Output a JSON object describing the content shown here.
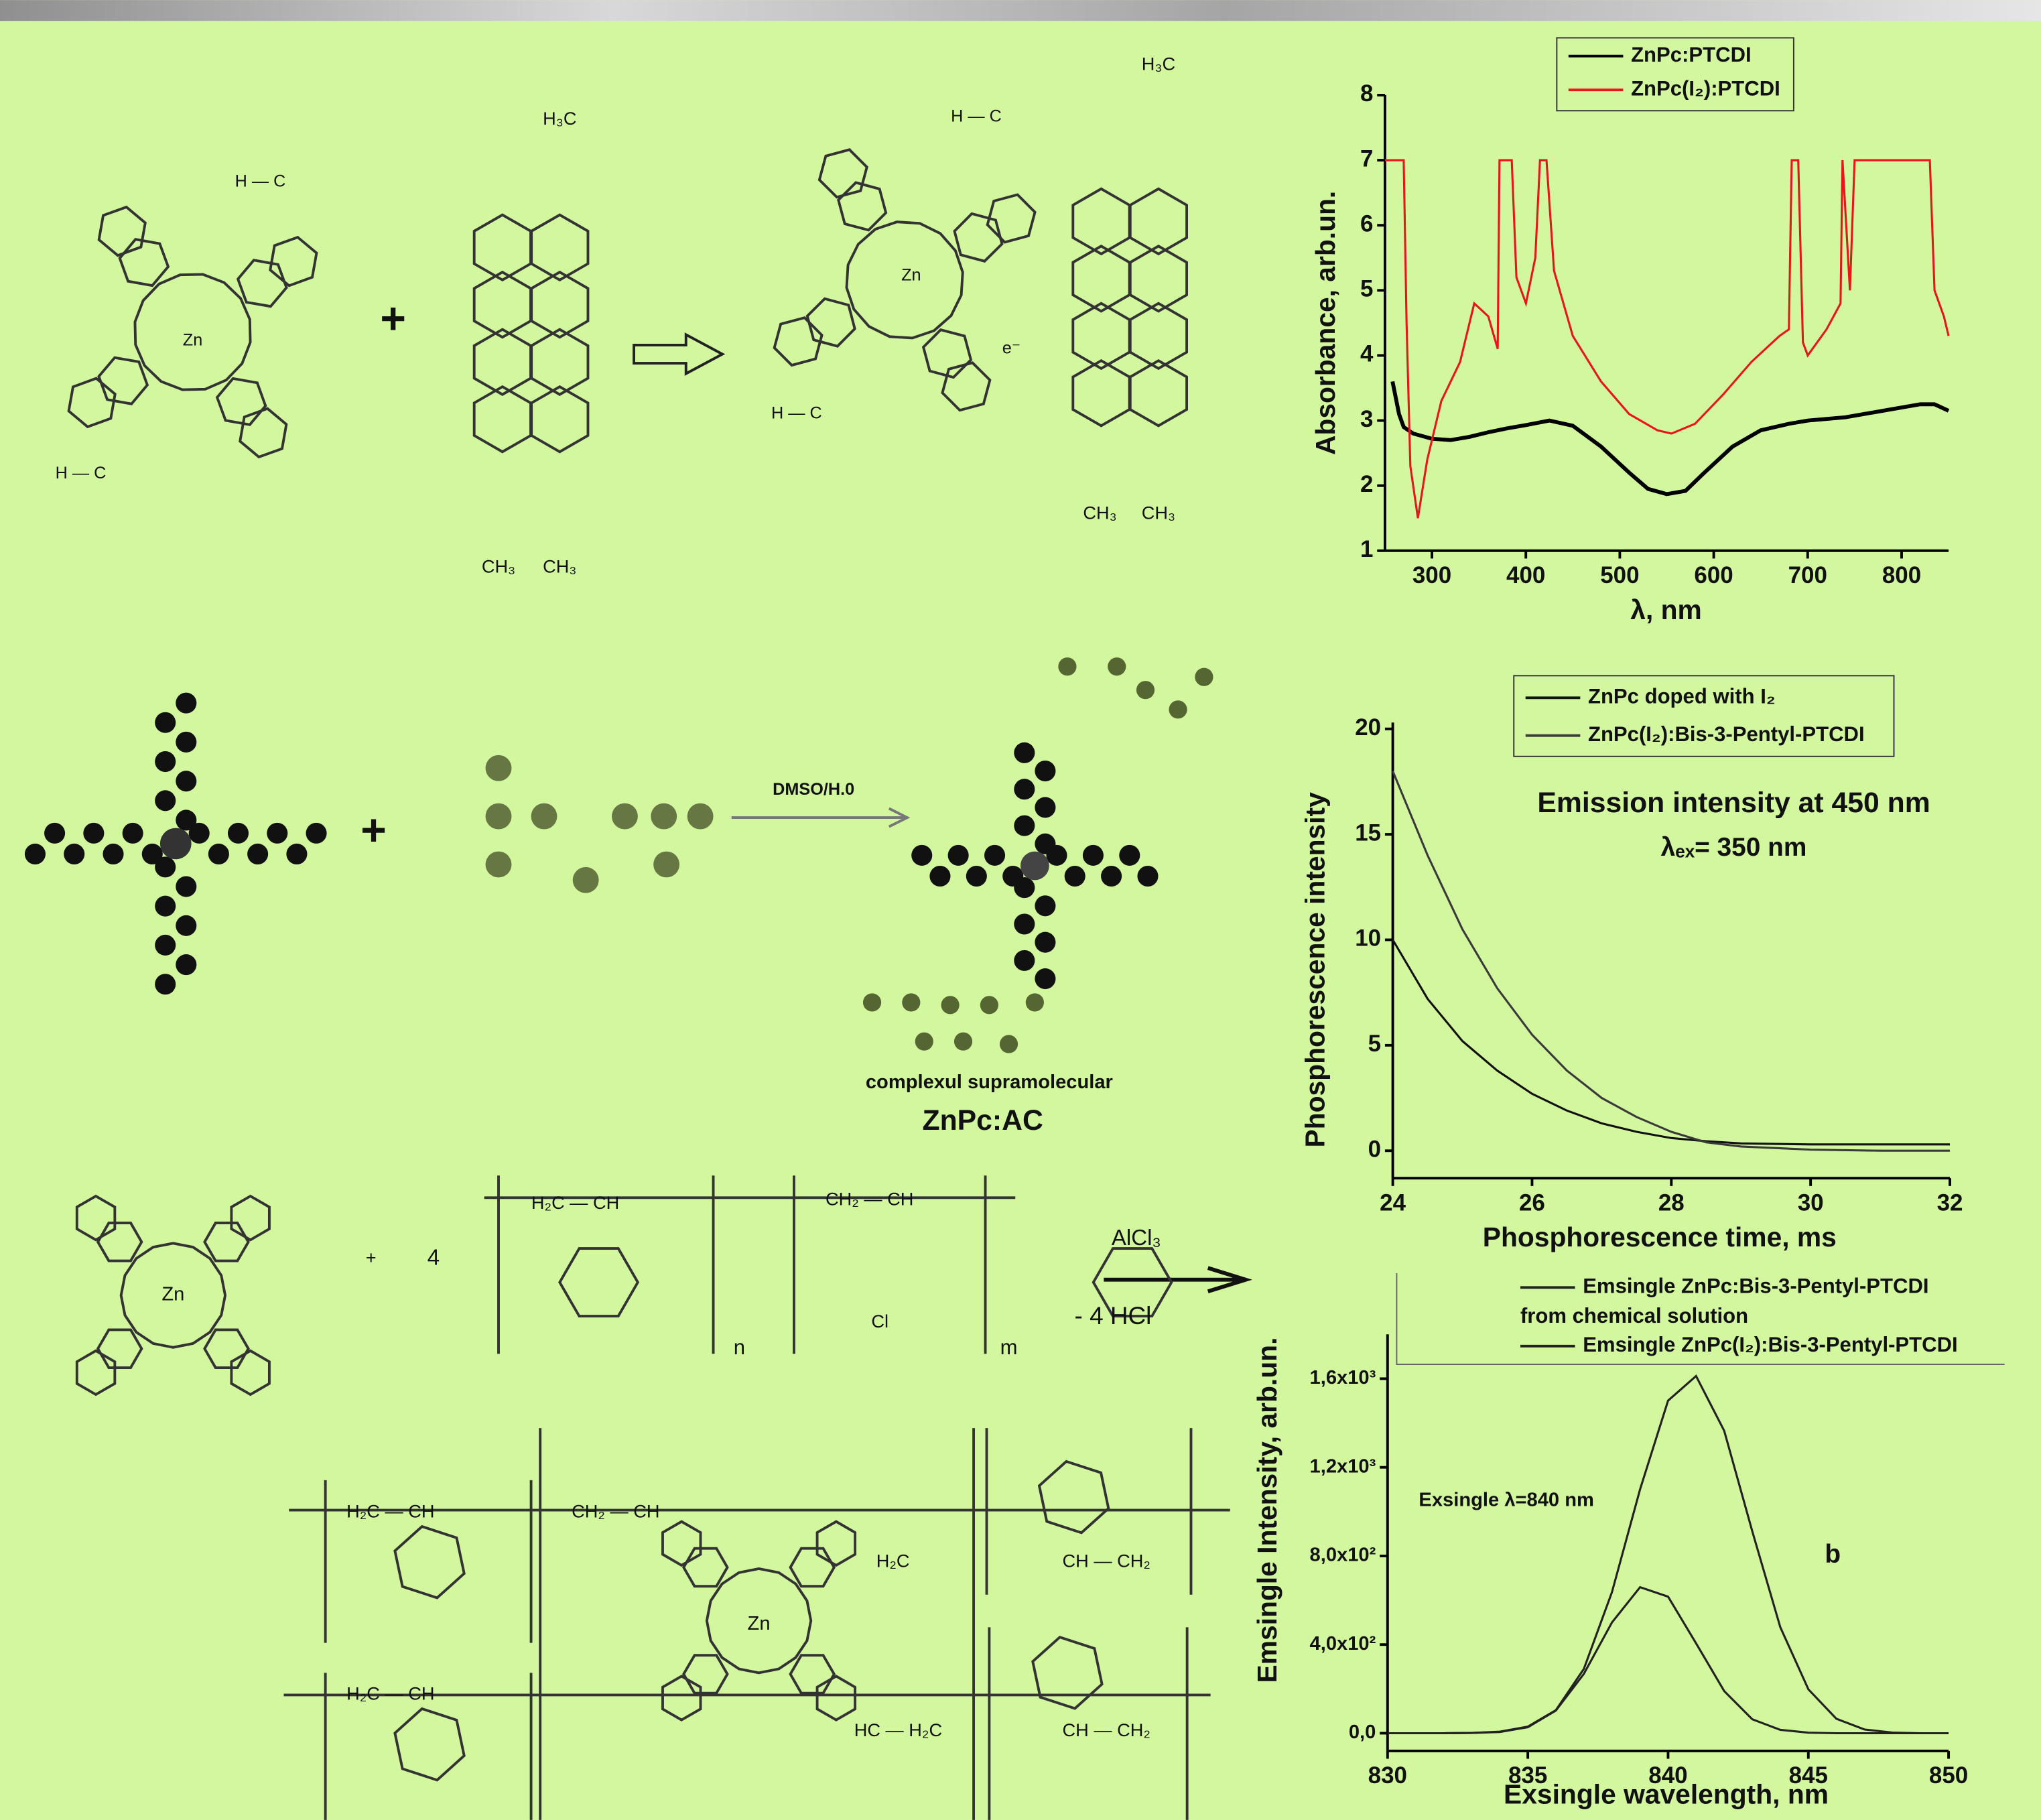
{
  "chart_data": [
    {
      "type": "line",
      "x_label": "λ, nm",
      "y_label": "Absorbance, arb.un.",
      "xlim": [
        250,
        850
      ],
      "ylim": [
        1,
        8
      ],
      "xticks": [
        300,
        400,
        500,
        600,
        700,
        800
      ],
      "yticks": [
        1,
        2,
        3,
        4,
        5,
        6,
        7,
        8
      ],
      "series": [
        {
          "name": "ZnPc:PTCDI",
          "color": "#000000",
          "x": [
            258,
            265,
            270,
            280,
            300,
            320,
            340,
            360,
            380,
            400,
            425,
            450,
            480,
            510,
            530,
            550,
            570,
            590,
            620,
            650,
            680,
            700,
            740,
            780,
            820,
            835,
            850
          ],
          "values": [
            3.6,
            3.1,
            2.9,
            2.8,
            2.72,
            2.7,
            2.75,
            2.82,
            2.88,
            2.93,
            3.0,
            2.92,
            2.6,
            2.2,
            1.95,
            1.87,
            1.92,
            2.2,
            2.6,
            2.85,
            2.95,
            3.0,
            3.05,
            3.15,
            3.25,
            3.25,
            3.15
          ]
        },
        {
          "name": "ZnPc(I₂):PTCDI",
          "color": "#e8161b",
          "x": [
            250,
            270,
            273,
            277,
            285,
            295,
            310,
            330,
            345,
            360,
            370,
            372,
            385,
            390,
            400,
            410,
            415,
            422,
            430,
            450,
            480,
            510,
            540,
            555,
            580,
            610,
            640,
            670,
            680,
            683,
            690,
            695,
            700,
            720,
            735,
            737,
            745,
            750,
            830,
            835,
            845,
            850
          ],
          "values": [
            7,
            7,
            4.5,
            2.3,
            1.5,
            2.4,
            3.3,
            3.9,
            4.8,
            4.6,
            4.1,
            7,
            7,
            5.2,
            4.8,
            5.5,
            7,
            7,
            5.3,
            4.3,
            3.6,
            3.1,
            2.85,
            2.8,
            2.95,
            3.4,
            3.9,
            4.3,
            4.4,
            7,
            7,
            4.2,
            4.0,
            4.4,
            4.8,
            7,
            5,
            7,
            7,
            5,
            4.6,
            4.3
          ]
        }
      ]
    },
    {
      "type": "line",
      "x_label": "Phosphorescence time, ms",
      "y_label": "Phosphorescence intensity",
      "xlim": [
        24,
        32
      ],
      "ylim": [
        -1.3,
        20.3
      ],
      "xticks": [
        24,
        26,
        28,
        30,
        32
      ],
      "yticks": [
        0,
        5,
        10,
        15,
        20
      ],
      "annotations": [
        "Emission intensity at  450 nm",
        "λₑₓ= 350 nm"
      ],
      "x": [
        24,
        24.5,
        25,
        25.5,
        26,
        26.5,
        27,
        27.5,
        28,
        28.5,
        29,
        30,
        31,
        32
      ],
      "series": [
        {
          "name": "ZnPc doped with I₂",
          "color": "#111111",
          "values": [
            10,
            7.2,
            5.2,
            3.8,
            2.7,
            1.9,
            1.3,
            0.9,
            0.6,
            0.45,
            0.35,
            0.3,
            0.3,
            0.3
          ]
        },
        {
          "name": "ZnPc(I₂):Bis-3-Pentyl-PTCDI",
          "color": "#3a3a3a",
          "values": [
            18,
            14,
            10.5,
            7.7,
            5.5,
            3.8,
            2.5,
            1.6,
            0.9,
            0.4,
            0.2,
            0.05,
            0,
            0
          ]
        }
      ]
    },
    {
      "type": "line",
      "x_label": "Exsingle wavelength, nm",
      "y_label": "Emsingle Intensity, arb.un.",
      "xlim": [
        830,
        850
      ],
      "ylim": [
        -80,
        1800
      ],
      "xticks": [
        830,
        835,
        840,
        845,
        850
      ],
      "yticks": [
        {
          "value": 0,
          "label": "0,0"
        },
        {
          "value": 400,
          "label": "4,0x10²"
        },
        {
          "value": 800,
          "label": "8,0x10²"
        },
        {
          "value": 1200,
          "label": "1,2x10³"
        },
        {
          "value": 1600,
          "label": "1,6x10³"
        }
      ],
      "annotations": [
        "Exsingle λ=840 nm",
        "b"
      ],
      "legend_note": "from chemical solution",
      "x": [
        830,
        831,
        832,
        833,
        834,
        835,
        836,
        837,
        838,
        839,
        840,
        841,
        842,
        843,
        844,
        845,
        846,
        847,
        848,
        849,
        850
      ],
      "series": [
        {
          "name": "Emsingle ZnPc:Bis-3-Pentyl-PTCDI",
          "color": "#222222",
          "values": [
            0,
            0,
            0,
            1,
            7,
            30,
            104,
            290,
            637,
            1101,
            1501,
            1612,
            1365,
            911,
            479,
            198,
            65,
            17,
            3,
            0,
            0
          ]
        },
        {
          "name": "Emsingle ZnPc(I₂):Bis-3-Pentyl-PTCDI",
          "color": "#222222",
          "values": [
            0,
            0,
            0,
            1,
            5,
            27,
            102,
            268,
            500,
            659,
            616,
            406,
            190,
            63,
            15,
            2,
            0,
            0,
            0,
            0,
            0
          ]
        }
      ]
    }
  ],
  "diagram": {
    "texts": [
      "+",
      "+",
      "DMSO/H.0",
      "complexul supramolecular",
      "ZnPc:AC",
      "+",
      "4",
      "n",
      "m",
      "AlCl₃",
      "- 4 HCl",
      "Zn",
      "Zn",
      "Zn",
      "Zn",
      "H₃C",
      "CH₃",
      "CH₃",
      "H₃C",
      "CH₃",
      "CH₃",
      "H — C",
      "H — C",
      "H — C",
      "H — C",
      "e⁻",
      "H₂C — CH",
      "CH₂ — CH",
      "Cl",
      "H₂C — CH",
      "CH₂ — CH",
      "H₂C — CH",
      "HC — H₂C",
      "CH — CH₂",
      "CH — CH₂",
      "H₂C"
    ]
  }
}
